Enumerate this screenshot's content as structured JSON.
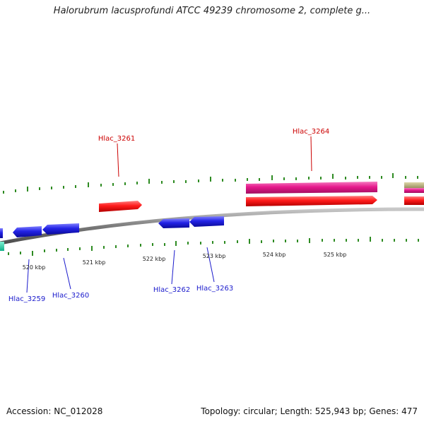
{
  "title": "Halorubrum lacusprofundi ATCC 49239 chromosome 2, complete g...",
  "footer": {
    "accession": "Accession: NC_012028",
    "topology": "Topology: circular; Length: 525,943 bp; Genes: 477"
  },
  "colors": {
    "backbone": "#888888",
    "tick": "#2e8b22",
    "forward_gene": "#ff1a1a",
    "reverse_gene": "#2323e6",
    "forward_label": "#cc0000",
    "reverse_label": "#1a1acc",
    "feature_magenta": "#e6198c",
    "feature_olive": "#b8ae78",
    "feature_teal": "#19e6b0"
  },
  "kbp_labels": [
    "520 kbp",
    "521 kbp",
    "522 kbp",
    "523 kbp",
    "524 kbp",
    "525 kbp"
  ],
  "gene_labels": {
    "forward": [
      "Hlac_3261",
      "Hlac_3264"
    ],
    "reverse": [
      "Hlac_3259",
      "Hlac_3260",
      "Hlac_3262",
      "Hlac_3263"
    ]
  }
}
